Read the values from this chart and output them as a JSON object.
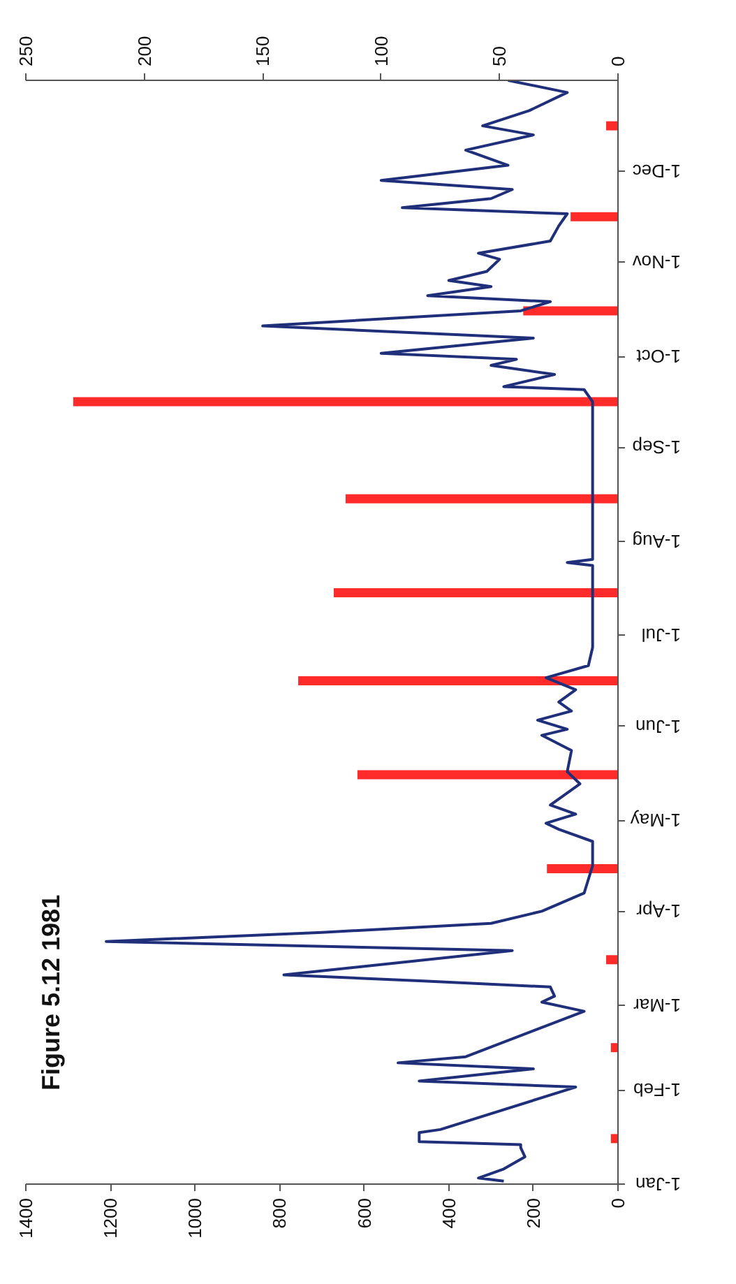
{
  "chart_data": {
    "type": "line",
    "title": "Figure 5.12 1981",
    "orientation": "horizontal",
    "xlim": [
      1400,
      0
    ],
    "xticks": [
      1400,
      1200,
      1000,
      800,
      600,
      400,
      200,
      0
    ],
    "x2lim": [
      250,
      0
    ],
    "x2ticks": [
      250,
      200,
      150,
      100,
      50,
      0
    ],
    "ylim": [
      "1981-01-01",
      "1981-12-31"
    ],
    "yticks": [
      {
        "value": "1981-01-01",
        "label": "1-Jan"
      },
      {
        "value": "1981-02-01",
        "label": "1-Feb"
      },
      {
        "value": "1981-03-01",
        "label": "1-Mar"
      },
      {
        "value": "1981-04-01",
        "label": "1-Apr"
      },
      {
        "value": "1981-05-01",
        "label": "1-May"
      },
      {
        "value": "1981-06-01",
        "label": "1-Jun"
      },
      {
        "value": "1981-07-01",
        "label": "1-Jul"
      },
      {
        "value": "1981-08-01",
        "label": "1-Aug"
      },
      {
        "value": "1981-09-01",
        "label": "1-Sep"
      },
      {
        "value": "1981-10-01",
        "label": "1-Oct"
      },
      {
        "value": "1981-11-01",
        "label": "1-Nov"
      },
      {
        "value": "1981-12-01",
        "label": "1-Dec"
      }
    ],
    "grid": false,
    "series": [
      {
        "type": "bar",
        "axis": "x2",
        "color": "#ff2a2a",
        "x": [
          "1981-01-16",
          "1981-02-15",
          "1981-03-16",
          "1981-04-15",
          "1981-05-16",
          "1981-06-16",
          "1981-07-15",
          "1981-08-15",
          "1981-09-16",
          "1981-10-16",
          "1981-11-16",
          "1981-12-16"
        ],
        "values": [
          3,
          3,
          5,
          30,
          110,
          135,
          120,
          115,
          230,
          40,
          20,
          5
        ]
      },
      {
        "color": "#1f2f7a",
        "x": [
          "1981-01-02",
          "1981-01-03",
          "1981-01-06",
          "1981-01-10",
          "1981-01-13",
          "1981-01-14",
          "1981-01-15",
          "1981-01-18",
          "1981-01-19",
          "1981-02-02",
          "1981-02-04",
          "1981-02-08",
          "1981-02-10",
          "1981-02-12",
          "1981-02-27",
          "1981-03-02",
          "1981-03-04",
          "1981-03-07",
          "1981-03-09",
          "1981-03-11",
          "1981-03-19",
          "1981-03-22",
          "1981-03-25",
          "1981-03-28",
          "1981-04-01",
          "1981-04-07",
          "1981-04-16",
          "1981-04-24",
          "1981-04-28",
          "1981-04-30",
          "1981-05-03",
          "1981-05-06",
          "1981-05-13",
          "1981-05-17",
          "1981-05-24",
          "1981-05-29",
          "1981-05-31",
          "1981-06-03",
          "1981-06-06",
          "1981-06-09",
          "1981-06-13",
          "1981-06-17",
          "1981-06-21",
          "1981-06-27",
          "1981-07-12",
          "1981-07-24",
          "1981-07-25",
          "1981-07-26",
          "1981-08-12",
          "1981-08-28",
          "1981-09-16",
          "1981-09-20",
          "1981-09-21",
          "1981-09-25",
          "1981-09-28",
          "1981-09-30",
          "1981-10-02",
          "1981-10-07",
          "1981-10-11",
          "1981-10-16",
          "1981-10-19",
          "1981-10-21",
          "1981-10-24",
          "1981-10-26",
          "1981-10-29",
          "1981-11-02",
          "1981-11-04",
          "1981-11-08",
          "1981-11-13",
          "1981-11-17",
          "1981-11-19",
          "1981-11-22",
          "1981-11-25",
          "1981-11-28",
          "1981-12-03",
          "1981-12-08",
          "1981-12-13",
          "1981-12-16",
          "1981-12-21",
          "1981-12-27",
          "1981-12-31"
        ],
        "values": [
          270,
          330,
          270,
          220,
          230,
          230,
          470,
          470,
          420,
          100,
          470,
          200,
          520,
          360,
          80,
          180,
          150,
          160,
          460,
          790,
          250,
          1210,
          700,
          300,
          180,
          80,
          60,
          60,
          140,
          170,
          100,
          160,
          90,
          120,
          110,
          180,
          120,
          190,
          110,
          140,
          100,
          170,
          70,
          60,
          60,
          60,
          120,
          60,
          60,
          60,
          60,
          80,
          270,
          150,
          300,
          240,
          560,
          200,
          840,
          230,
          160,
          450,
          300,
          400,
          310,
          280,
          330,
          160,
          140,
          120,
          510,
          300,
          250,
          560,
          260,
          360,
          200,
          320,
          210,
          120,
          260
        ]
      }
    ]
  }
}
